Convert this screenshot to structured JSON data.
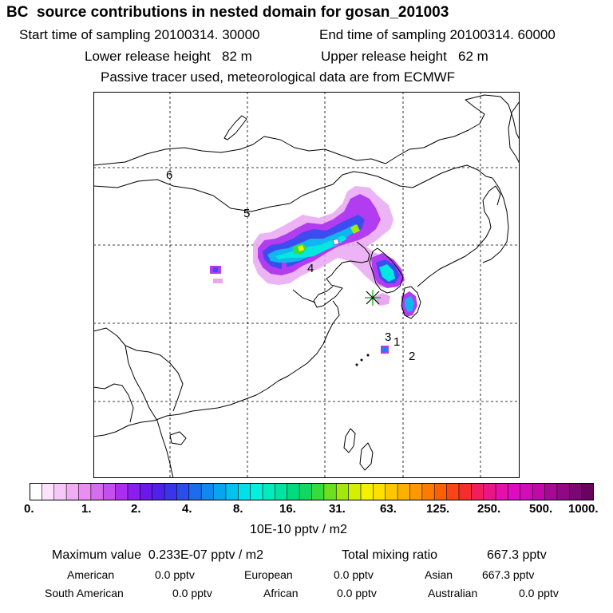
{
  "title": "BC  source contributions in nested domain for gosan_201003",
  "header": {
    "start_time": "Start time of sampling 20100314. 30000",
    "end_time": "End time of sampling 20100314. 60000",
    "lower_height": "Lower release height   82 m",
    "upper_height": "Upper release height   62 m",
    "tracer_note": "Passive tracer used, meteorological data are from ECMWF"
  },
  "map": {
    "receptor_marker": "receptor-star",
    "point_labels": [
      "6",
      "5",
      "4",
      "3",
      "1",
      "2"
    ],
    "colors": {
      "coast": "#000000",
      "grid": "#000000"
    }
  },
  "colorbar": {
    "tick_labels": [
      "0.",
      "1.",
      "2.",
      "4.",
      "8.",
      "16.",
      "31.",
      "63.",
      "125.",
      "250.",
      "500.",
      "1000."
    ],
    "colors": [
      "#ffffff",
      "#fbe4fb",
      "#f6c8f8",
      "#f2acf4",
      "#ea8ef1",
      "#d66cee",
      "#c44eee",
      "#aa2ef0",
      "#8a1ef0",
      "#6a18ee",
      "#5020ec",
      "#3a34ea",
      "#2a4eec",
      "#1c6cee",
      "#1088ef",
      "#08a4f0",
      "#00c2ee",
      "#00e0e8",
      "#00f2dc",
      "#00ecc0",
      "#00e4a0",
      "#00dc7c",
      "#10d860",
      "#36dc3c",
      "#6ae020",
      "#a2e80c",
      "#d4f000",
      "#f6f000",
      "#fde000",
      "#fdc800",
      "#fdb000",
      "#fd9800",
      "#fd7c00",
      "#fd6000",
      "#fd4418",
      "#f72c2c",
      "#f01e5a",
      "#ea1686",
      "#e80eaa",
      "#e00ac0",
      "#d40cb8",
      "#c00aa8",
      "#a80896",
      "#920884",
      "#7c0672",
      "#660460"
    ],
    "units": "10E-10 pptv / m2"
  },
  "stats": {
    "max_value": "Maximum value  0.233E-07 pptv / m2",
    "total_label": "Total mixing ratio",
    "total_value": "667.3 pptv",
    "regions": [
      {
        "name": "American",
        "value": "0.0 pptv"
      },
      {
        "name": "European",
        "value": "0.0 pptv"
      },
      {
        "name": "Asian",
        "value": "667.3 pptv"
      },
      {
        "name": "South American",
        "value": "0.0 pptv"
      },
      {
        "name": "African",
        "value": "0.0 pptv"
      },
      {
        "name": "Australian",
        "value": "0.0 pptv"
      }
    ]
  }
}
